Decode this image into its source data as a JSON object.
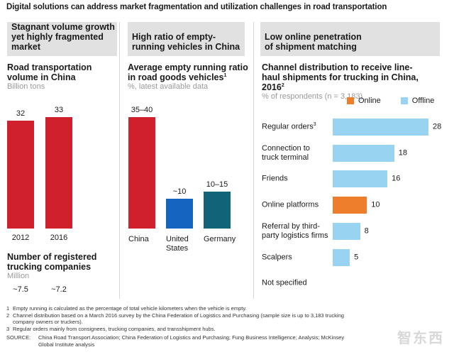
{
  "title": "Digital solutions can address market fragmentation and utilization challenges in road transportation",
  "panels": [
    {
      "header": "Stagnant volume growth yet highly fragmented market",
      "chart_title": "Road transportation volume in China",
      "unit": "Billion tons",
      "secondary_title": "Number of registered trucking companies",
      "secondary_unit": "Million",
      "secondary_values": [
        "~7.5",
        "~7.2"
      ]
    },
    {
      "header": "High ratio of empty-running vehicles in China",
      "chart_title": "Average empty running ratio in road goods vehicles",
      "chart_title_sup": "1",
      "unit": "%, latest available data"
    },
    {
      "header": "Low online penetration of shipment matching",
      "chart_title": "Channel distribution to receive line-haul shipments for trucking in China, 2016",
      "chart_title_sup": "2",
      "unit": "% of respondents (n = 3,183)"
    }
  ],
  "colors": {
    "red": "#d0202e",
    "blue": "#1565c0",
    "teal": "#116478",
    "online": "#ee7d2c",
    "offline": "#98d4f1",
    "header_bg": "#e1e1e1"
  },
  "chart_data": [
    {
      "type": "bar",
      "title": "Road transportation volume in China",
      "ylabel": "Billion tons",
      "categories": [
        "2012",
        "2016"
      ],
      "values": [
        32,
        33
      ],
      "value_labels": [
        "32",
        "33"
      ],
      "ylim": [
        0,
        33
      ]
    },
    {
      "type": "bar",
      "title": "Average empty running ratio in road goods vehicles",
      "ylabel": "%, latest available data",
      "categories": [
        "China",
        "United States",
        "Germany"
      ],
      "category_lines": [
        [
          "China"
        ],
        [
          "United",
          "States"
        ],
        [
          "Germany"
        ]
      ],
      "values": [
        37.5,
        10,
        12.5
      ],
      "value_labels": [
        "35–40",
        "~10",
        "10–15"
      ],
      "series_colors": [
        "#d0202e",
        "#1565c0",
        "#116478"
      ],
      "ylim": [
        0,
        37.5
      ]
    },
    {
      "type": "bar",
      "orientation": "horizontal",
      "title": "Channel distribution to receive line-haul shipments for trucking in China, 2016",
      "xlabel": "% of respondents (n = 3,183)",
      "legend": [
        {
          "name": "Online",
          "color": "#ee7d2c"
        },
        {
          "name": "Offline",
          "color": "#98d4f1"
        }
      ],
      "legend_position": "top-right",
      "categories": [
        "Regular orders",
        "Connection to truck terminal",
        "Friends",
        "Online platforms",
        "Referral by third-party logistics firms",
        "Scalpers",
        "Not specified"
      ],
      "category_lines": [
        [
          "Regular orders"
        ],
        [
          "Connection to",
          "truck terminal"
        ],
        [
          "Friends"
        ],
        [
          "Online platforms"
        ],
        [
          "Referral by third-",
          "party logistics firms"
        ],
        [
          "Scalpers"
        ],
        [
          "Not specified"
        ]
      ],
      "category_sups": [
        "3",
        "",
        "",
        "",
        "",
        "",
        ""
      ],
      "values": [
        28,
        18,
        16,
        10,
        8,
        5,
        null
      ],
      "value_labels": [
        "28",
        "18",
        "16",
        "10",
        "8",
        "5",
        ""
      ],
      "series": [
        "Offline",
        "Offline",
        "Offline",
        "Online",
        "Offline",
        "Offline",
        null
      ],
      "xlim": [
        0,
        28
      ]
    }
  ],
  "footnotes": [
    {
      "num": "1",
      "text": "Empty running is calculated as the percentage of total vehicle kilometers when the vehicle is empty."
    },
    {
      "num": "2",
      "text": "Channel distribution based on a March 2016 survey by the China Federation of Logistics and Purchasing (sample size is up to 3,183 trucking company owners or truckers)."
    },
    {
      "num": "3",
      "text": "Regular orders mainly from consignees, trucking companies, and transshipment hubs."
    }
  ],
  "source_label": "SOURCE:",
  "source_text": "China Road Transport Association; China Federation of Logistics and Purchasing; Fung Business Intelligence; Analysis; McKinsey Global Institute analysis",
  "watermark": "智东西"
}
